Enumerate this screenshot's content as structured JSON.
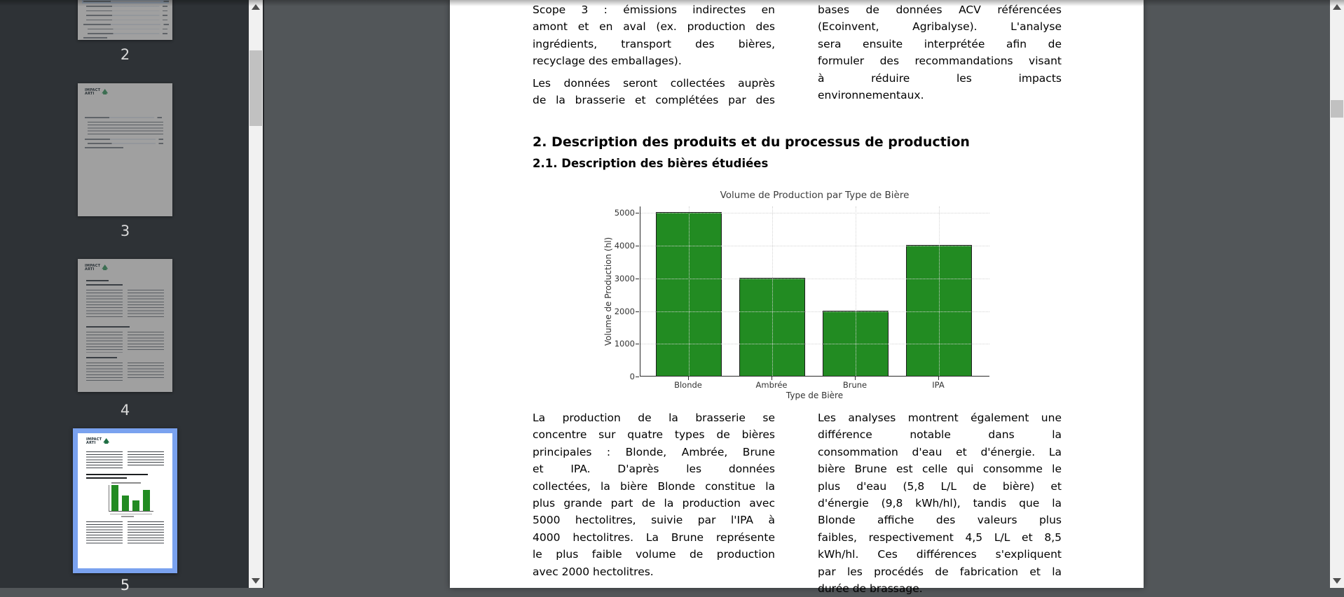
{
  "app": {
    "kind": "pdf-viewer"
  },
  "colors": {
    "sidebar_bg": "#2e3236",
    "viewer_bg": "#525659",
    "selection_border": "#7aa2ef",
    "scrollbar_track": "#f1f1f1",
    "scrollbar_thumb": "#c1c1c1"
  },
  "logo": {
    "line1": "IMPACT",
    "line2": "ARTI"
  },
  "sidebar": {
    "thumbnails": [
      {
        "page": "2",
        "selected": false
      },
      {
        "page": "3",
        "selected": false
      },
      {
        "page": "4",
        "selected": false
      },
      {
        "page": "5",
        "selected": true
      }
    ]
  },
  "document": {
    "top_left_column": {
      "p1": {
        "end": true,
        "lines": [
          "Scope 3 : émissions indirectes en",
          "amont et en aval (ex. production des",
          "ingrédients, transport des bières,",
          "recyclage des emballages)."
        ]
      },
      "p2": {
        "end": false,
        "lines": [
          "Les données seront collectées auprès",
          "de la brasserie et complétées par des"
        ]
      }
    },
    "top_right_column": {
      "p1": {
        "end": true,
        "lines": [
          "bases de données ACV référencées",
          "(Ecoinvent, Agribalyse). L'analyse",
          "sera ensuite interprétée afin de",
          "formuler des recommandations visant",
          "à réduire les impacts",
          "environnementaux."
        ]
      }
    },
    "section_heading": "2. Description des produits et du processus de production",
    "subsection_heading": "2.1. Description des bières étudiées",
    "bottom_left_column": {
      "p1": {
        "end": true,
        "lines": [
          "La production de la brasserie se",
          "concentre sur quatre types de bières",
          "principales : Blonde, Ambrée, Brune",
          "et IPA. D'après les données",
          "collectées, la bière Blonde constitue la",
          "plus grande part de la production avec",
          "5000 hectolitres, suivie par l'IPA à",
          "4000 hectolitres. La Brune représente",
          "le plus faible volume de production",
          "avec 2000 hectolitres."
        ]
      }
    },
    "bottom_right_column": {
      "p1": {
        "end": true,
        "lines": [
          "Les analyses montrent également une",
          "différence notable dans la",
          "consommation d'eau et d'énergie. La",
          "bière Brune est celle qui consomme le",
          "plus d'eau (5,8 L/L de bière) et",
          "d'énergie (9,8 kWh/hl), tandis que la",
          "Blonde affiche des valeurs plus",
          "faibles, respectivement 4,5 L/L et 8,5",
          "kWh/hl. Ces différences s'expliquent",
          "par les procédés de fabrication et la",
          "durée de brassage."
        ]
      }
    }
  },
  "chart_data": {
    "type": "bar",
    "title": "Volume de Production par Type de Bière",
    "categories": [
      "Blonde",
      "Ambrée",
      "Brune",
      "IPA"
    ],
    "values": [
      5000,
      3000,
      2000,
      4000
    ],
    "xlabel": "Type de Bière",
    "ylabel": "Volume de Production (hl)",
    "ylim": [
      0,
      5200
    ],
    "yticks": [
      0,
      1000,
      2000,
      3000,
      4000,
      5000
    ],
    "grid": "dotted",
    "legend": "none",
    "bar_color": "#228B22",
    "bar_edge_color": "#1e1e1e"
  }
}
